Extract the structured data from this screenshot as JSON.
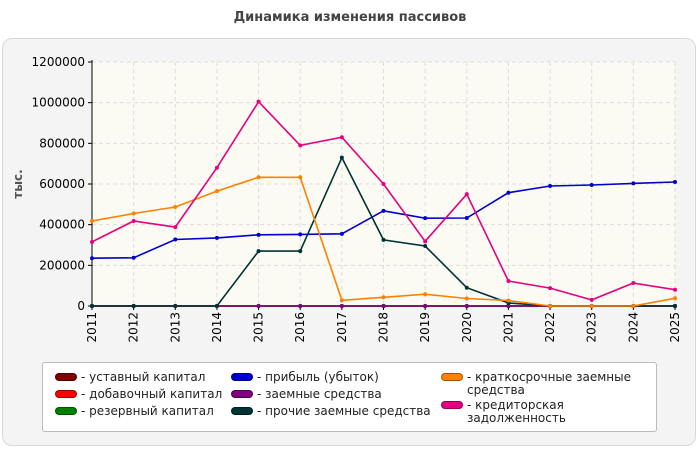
{
  "chart_data": {
    "type": "line",
    "title": "Динамика изменения пассивов",
    "ylabel": "тыс.",
    "xlabel": "",
    "ylim": [
      0,
      1200000
    ],
    "yticks": [
      0,
      200000,
      400000,
      600000,
      800000,
      1000000,
      1200000
    ],
    "grid": true,
    "legend_position": "bottom",
    "x": [
      "2011",
      "2012",
      "2013",
      "2014",
      "2015",
      "2016",
      "2017",
      "2018",
      "2019",
      "2020",
      "2021",
      "2022",
      "2023",
      "2024",
      "2025"
    ],
    "series": [
      {
        "name": "- уставный капитал",
        "color": "#800000",
        "values": [
          0,
          0,
          0,
          0,
          0,
          0,
          0,
          0,
          0,
          0,
          0,
          0,
          0,
          0,
          0
        ]
      },
      {
        "name": "- добавочный капитал",
        "color": "#ff0000",
        "values": [
          0,
          0,
          0,
          0,
          0,
          0,
          0,
          0,
          0,
          0,
          0,
          0,
          0,
          0,
          0
        ]
      },
      {
        "name": "- резервный капитал",
        "color": "#008000",
        "values": [
          0,
          0,
          0,
          0,
          0,
          0,
          0,
          0,
          0,
          0,
          0,
          0,
          0,
          0,
          0
        ]
      },
      {
        "name": "- прибыль (убыток)",
        "color": "#0000cc",
        "values": [
          235000,
          237000,
          327000,
          335000,
          350000,
          352000,
          355000,
          468000,
          432000,
          433000,
          557000,
          590000,
          595000,
          603000,
          610000
        ]
      },
      {
        "name": "- заемные средства",
        "color": "#800080",
        "values": [
          0,
          0,
          0,
          0,
          0,
          0,
          0,
          0,
          0,
          0,
          0,
          0,
          0,
          0,
          0
        ]
      },
      {
        "name": "- прочие заемные средства",
        "color": "#003333",
        "values": [
          0,
          0,
          0,
          0,
          270000,
          270000,
          730000,
          325000,
          295000,
          90000,
          15000,
          0,
          0,
          0,
          0
        ]
      },
      {
        "name": "- краткосрочные заемные средства",
        "color": "#ff8000",
        "values": [
          418000,
          455000,
          487000,
          565000,
          633000,
          633000,
          28000,
          43000,
          58000,
          37000,
          27000,
          0,
          0,
          0,
          38000
        ]
      },
      {
        "name": "- кредиторская задолженность",
        "color": "#e6007e",
        "values": [
          315000,
          418000,
          388000,
          680000,
          1005000,
          790000,
          830000,
          600000,
          318000,
          550000,
          123000,
          88000,
          30000,
          113000,
          80000
        ]
      }
    ]
  }
}
